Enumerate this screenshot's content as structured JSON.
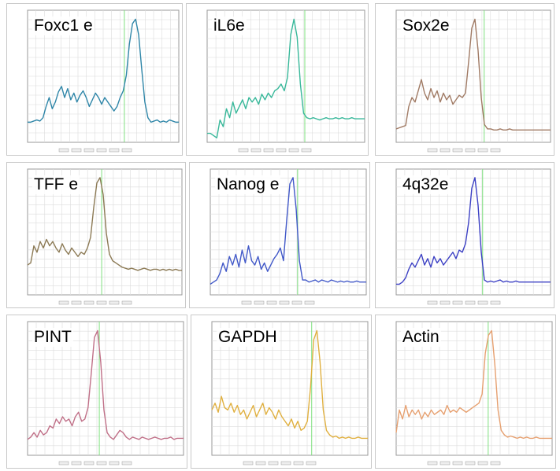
{
  "chart_data": [
    {
      "type": "line",
      "label": "Foxc1 e",
      "color": "#2f86a8",
      "marker_x": 0.64,
      "label_pos": "top-left",
      "values": [
        0.08,
        0.08,
        0.09,
        0.1,
        0.09,
        0.12,
        0.22,
        0.3,
        0.2,
        0.26,
        0.35,
        0.4,
        0.3,
        0.38,
        0.28,
        0.34,
        0.26,
        0.32,
        0.36,
        0.3,
        0.22,
        0.28,
        0.34,
        0.3,
        0.24,
        0.3,
        0.26,
        0.22,
        0.18,
        0.22,
        0.3,
        0.36,
        0.5,
        0.78,
        0.96,
        1.0,
        0.86,
        0.55,
        0.26,
        0.12,
        0.08,
        0.09,
        0.1,
        0.08,
        0.09,
        0.08,
        0.1,
        0.09,
        0.08,
        0.08
      ]
    },
    {
      "type": "line",
      "label": "iL6e",
      "color": "#38b89a",
      "marker_x": 0.62,
      "label_pos": "top-left",
      "values": [
        -0.02,
        -0.02,
        -0.04,
        -0.06,
        0.1,
        0.04,
        0.2,
        0.12,
        0.26,
        0.16,
        0.22,
        0.28,
        0.2,
        0.3,
        0.26,
        0.3,
        0.24,
        0.33,
        0.28,
        0.34,
        0.3,
        0.36,
        0.38,
        0.42,
        0.36,
        0.48,
        0.86,
        1.0,
        0.84,
        0.42,
        0.16,
        0.12,
        0.11,
        0.12,
        0.11,
        0.1,
        0.11,
        0.12,
        0.11,
        0.11,
        0.12,
        0.11,
        0.12,
        0.11,
        0.11,
        0.12,
        0.11,
        0.11,
        0.11,
        0.11
      ]
    },
    {
      "type": "line",
      "label": "Sox2e",
      "color": "#a07a64",
      "marker_x": 0.57,
      "label_pos": "top-left",
      "values": [
        0.02,
        0.03,
        0.04,
        0.05,
        0.22,
        0.3,
        0.26,
        0.36,
        0.46,
        0.34,
        0.28,
        0.38,
        0.3,
        0.36,
        0.26,
        0.34,
        0.28,
        0.32,
        0.24,
        0.28,
        0.32,
        0.3,
        0.34,
        0.62,
        0.92,
        1.0,
        0.72,
        0.3,
        0.06,
        0.02,
        0.02,
        0.01,
        0.01,
        0.02,
        0.01,
        0.01,
        0.02,
        0.01,
        0.01,
        0.01,
        0.01,
        0.01,
        0.01,
        0.01,
        0.01,
        0.01,
        0.01,
        0.01,
        0.01,
        0.01
      ]
    },
    {
      "type": "line",
      "label": "TFF e",
      "color": "#8c7a55",
      "marker_x": 0.48,
      "label_pos": "top-left",
      "values": [
        0.18,
        0.2,
        0.36,
        0.3,
        0.4,
        0.34,
        0.42,
        0.36,
        0.4,
        0.34,
        0.3,
        0.38,
        0.32,
        0.28,
        0.34,
        0.3,
        0.26,
        0.3,
        0.28,
        0.34,
        0.44,
        0.72,
        0.95,
        1.0,
        0.84,
        0.48,
        0.28,
        0.22,
        0.2,
        0.18,
        0.16,
        0.15,
        0.14,
        0.15,
        0.14,
        0.13,
        0.14,
        0.15,
        0.14,
        0.13,
        0.14,
        0.14,
        0.13,
        0.14,
        0.13,
        0.14,
        0.13,
        0.14,
        0.13,
        0.13
      ]
    },
    {
      "type": "line",
      "label": "Nanog e",
      "color": "#4158c8",
      "marker_x": 0.56,
      "label_pos": "top-left",
      "values": [
        0.0,
        0.02,
        0.04,
        0.1,
        0.2,
        0.12,
        0.26,
        0.18,
        0.28,
        0.16,
        0.32,
        0.2,
        0.36,
        0.22,
        0.18,
        0.26,
        0.14,
        0.2,
        0.12,
        0.18,
        0.24,
        0.28,
        0.34,
        0.22,
        0.6,
        0.94,
        1.0,
        0.7,
        0.22,
        0.04,
        0.04,
        0.02,
        0.03,
        0.04,
        0.02,
        0.04,
        0.03,
        0.02,
        0.04,
        0.03,
        0.02,
        0.03,
        0.02,
        0.03,
        0.02,
        0.02,
        0.03,
        0.02,
        0.02,
        0.02
      ]
    },
    {
      "type": "line",
      "label": "4q32e",
      "color": "#3c40c4",
      "marker_x": 0.56,
      "label_pos": "top-left",
      "values": [
        0.0,
        0.0,
        0.02,
        0.06,
        0.14,
        0.2,
        0.16,
        0.22,
        0.28,
        0.18,
        0.24,
        0.16,
        0.26,
        0.2,
        0.24,
        0.18,
        0.22,
        0.26,
        0.3,
        0.24,
        0.32,
        0.3,
        0.38,
        0.58,
        0.9,
        1.0,
        0.74,
        0.3,
        0.04,
        0.02,
        0.03,
        0.02,
        0.03,
        0.04,
        0.02,
        0.03,
        0.02,
        0.02,
        0.03,
        0.02,
        0.02,
        0.02,
        0.02,
        0.02,
        0.02,
        0.02,
        0.02,
        0.02,
        0.02,
        0.02
      ]
    },
    {
      "type": "line",
      "label": "PINT",
      "color": "#c07088",
      "marker_x": 0.46,
      "label_pos": "top-left",
      "values": [
        0.04,
        0.06,
        0.1,
        0.06,
        0.12,
        0.08,
        0.1,
        0.16,
        0.14,
        0.22,
        0.18,
        0.24,
        0.2,
        0.22,
        0.16,
        0.24,
        0.28,
        0.2,
        0.22,
        0.32,
        0.62,
        0.94,
        1.0,
        0.72,
        0.3,
        0.1,
        0.06,
        0.04,
        0.08,
        0.12,
        0.1,
        0.06,
        0.04,
        0.06,
        0.05,
        0.04,
        0.06,
        0.05,
        0.04,
        0.05,
        0.06,
        0.05,
        0.04,
        0.05,
        0.05,
        0.06,
        0.04,
        0.05,
        0.05,
        0.05
      ]
    },
    {
      "type": "line",
      "label": "GAPDH",
      "color": "#e0b040",
      "marker_x": 0.64,
      "label_pos": "top-left",
      "values": [
        0.3,
        0.36,
        0.28,
        0.42,
        0.32,
        0.3,
        0.36,
        0.28,
        0.34,
        0.26,
        0.3,
        0.22,
        0.28,
        0.34,
        0.24,
        0.3,
        0.36,
        0.26,
        0.32,
        0.28,
        0.22,
        0.3,
        0.24,
        0.2,
        0.16,
        0.22,
        0.14,
        0.2,
        0.12,
        0.14,
        0.2,
        0.5,
        0.92,
        1.0,
        0.72,
        0.3,
        0.12,
        0.08,
        0.06,
        0.07,
        0.05,
        0.06,
        0.05,
        0.06,
        0.05,
        0.05,
        0.06,
        0.05,
        0.05,
        0.05
      ]
    },
    {
      "type": "line",
      "label": "Actin",
      "color": "#e6a070",
      "marker_x": 0.59,
      "label_pos": "top-left",
      "values": [
        0.1,
        0.3,
        0.22,
        0.34,
        0.24,
        0.3,
        0.26,
        0.3,
        0.22,
        0.28,
        0.24,
        0.3,
        0.26,
        0.28,
        0.3,
        0.26,
        0.34,
        0.28,
        0.3,
        0.28,
        0.32,
        0.3,
        0.28,
        0.3,
        0.32,
        0.34,
        0.36,
        0.44,
        0.8,
        0.96,
        1.0,
        0.7,
        0.3,
        0.12,
        0.08,
        0.06,
        0.07,
        0.06,
        0.05,
        0.06,
        0.05,
        0.06,
        0.05,
        0.05,
        0.06,
        0.05,
        0.05,
        0.05,
        0.05,
        0.05
      ]
    }
  ]
}
